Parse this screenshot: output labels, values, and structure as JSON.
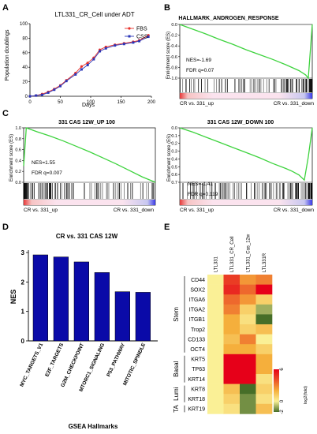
{
  "panel_labels": [
    "A",
    "B",
    "C",
    "D",
    "E"
  ],
  "chart_data": [
    {
      "id": "A",
      "type": "line",
      "title": "LTL331_CR_Cell under ADT",
      "xlabel": "Days",
      "ylabel": "Population doublings",
      "xlim": [
        0,
        200
      ],
      "ylim": [
        0,
        100
      ],
      "xticks": [
        "0",
        "50",
        "100",
        "150",
        "200"
      ],
      "yticks": [
        "0",
        "20",
        "40",
        "60",
        "80",
        "100"
      ],
      "legend_position": "top-right",
      "series": [
        {
          "name": "FBS",
          "color": "#e8302a",
          "x": [
            0,
            10,
            20,
            30,
            40,
            50,
            60,
            75,
            85,
            95,
            105,
            115,
            125,
            140,
            155,
            170,
            180,
            195
          ],
          "y": [
            0,
            1,
            3,
            6,
            10,
            15,
            22,
            32,
            41,
            46,
            53,
            64,
            68,
            71,
            73,
            75,
            77,
            84
          ]
        },
        {
          "name": "CSS",
          "color": "#2a36b8",
          "x": [
            0,
            10,
            20,
            30,
            40,
            50,
            60,
            75,
            85,
            95,
            105,
            115,
            125,
            140,
            155,
            170,
            180,
            195
          ],
          "y": [
            0,
            1,
            2,
            5,
            9,
            14,
            21,
            30,
            37,
            43,
            51,
            62,
            66,
            70,
            72,
            74,
            76,
            82
          ]
        }
      ]
    },
    {
      "id": "B",
      "type": "line",
      "title": "HALLMARK_ANDROGEN_RESPONSE",
      "ylabel": "Enrichment score (ES)",
      "ylim": [
        -1.0,
        0.0
      ],
      "yticks": [
        "0.0",
        "-0.2",
        "-0.4",
        "-0.6",
        "-0.8",
        "-1.0"
      ],
      "nes": "NES=-1.69",
      "fdr": "FDR q=0.07",
      "left_label": "CR vs. 331_up",
      "right_label": "CR vs. 331_down",
      "x": [
        0,
        0.1,
        0.2,
        0.3,
        0.4,
        0.5,
        0.6,
        0.7,
        0.8,
        0.9,
        0.95,
        0.97,
        0.985,
        1.0
      ],
      "y": [
        0,
        -0.09,
        -0.18,
        -0.28,
        -0.37,
        -0.47,
        -0.56,
        -0.65,
        -0.75,
        -0.86,
        -0.94,
        -1.0,
        -0.5,
        0
      ]
    },
    {
      "id": "C1",
      "type": "line",
      "title": "331 CAS 12W_UP 100",
      "ylabel": "Enrichment score (ES)",
      "ylim": [
        0.0,
        1.0
      ],
      "yticks": [
        "1.0",
        "0.8",
        "0.6",
        "0.4",
        "0.2",
        "0.0"
      ],
      "nes": "NES=1.55",
      "fdr": "FDR q=0.007",
      "left_label": "CR vs. 331_up",
      "right_label": "CR vs. 331_down",
      "x": [
        0,
        0.02,
        0.1,
        0.2,
        0.3,
        0.4,
        0.5,
        0.6,
        0.7,
        0.8,
        0.9,
        1.0
      ],
      "y": [
        0.3,
        1.0,
        0.93,
        0.85,
        0.76,
        0.66,
        0.56,
        0.45,
        0.34,
        0.22,
        0.1,
        0.0
      ]
    },
    {
      "id": "C2",
      "type": "line",
      "title": "331 CAS 12W_DOWN 100",
      "ylabel": "Enrichment score (ES)",
      "ylim": [
        -0.75,
        0.0
      ],
      "yticks": [
        "0.0",
        "0.1",
        "0.2",
        "0.3",
        "0.4",
        "0.5",
        "0.6",
        "0.7"
      ],
      "nes": "NES=-1.41",
      "fdr": "FDR q=0.119",
      "left_label": "CR vs. 331_up",
      "right_label": "CR vs. 331_down",
      "x": [
        0,
        0.1,
        0.2,
        0.3,
        0.4,
        0.5,
        0.6,
        0.7,
        0.8,
        0.85,
        0.9,
        0.94,
        0.97,
        1.0
      ],
      "y": [
        0,
        -0.06,
        -0.13,
        -0.2,
        -0.27,
        -0.34,
        -0.41,
        -0.49,
        -0.56,
        -0.6,
        -0.65,
        -0.72,
        -0.4,
        0
      ]
    },
    {
      "id": "D",
      "type": "bar",
      "title": "CR vs. 331 CAS 12W",
      "xlabel": "GSEA Hallmarks",
      "ylabel": "NES",
      "ylim": [
        0,
        3
      ],
      "yticks": [
        "0",
        "1",
        "2",
        "3"
      ],
      "bar_color": "#0a0aa8",
      "categories": [
        "MYC_TARGETS_V1",
        "E2F_TARGETS",
        "G2M_CHECKPOINT",
        "MTORC1_SIGNALING",
        "P53_PATHWAY",
        "MITOTIC_SPINDLE"
      ],
      "values": [
        2.92,
        2.85,
        2.68,
        2.32,
        1.67,
        1.65
      ]
    },
    {
      "id": "E",
      "type": "heatmap",
      "columns": [
        "LTL331",
        "LTL331_CR_Cell",
        "LTL331_Cas_12w",
        "LTL331R"
      ],
      "rows": [
        "CD44",
        "SOX2",
        "ITGA6",
        "ITGA2",
        "ITGB1",
        "Trop2",
        "CD133",
        "OCT4",
        "KRT5",
        "TP63",
        "KRT14",
        "KRT8",
        "KRT18",
        "KRT19"
      ],
      "groups": [
        {
          "label": "Stem",
          "start": 0,
          "end": 7
        },
        {
          "label": "Basal",
          "start": 8,
          "end": 10
        },
        {
          "label": "Lumi",
          "start": 11,
          "end": 12
        },
        {
          "label": "TA",
          "start": 13,
          "end": 13
        }
      ],
      "values": [
        [
          0.0,
          4.5,
          2.5,
          3.0
        ],
        [
          0.0,
          5.0,
          3.5,
          6.0
        ],
        [
          0.0,
          3.5,
          2.5,
          1.0
        ],
        [
          0.0,
          3.0,
          1.0,
          -1.0
        ],
        [
          0.0,
          2.0,
          0.5,
          -2.0
        ],
        [
          0.0,
          2.0,
          1.0,
          1.5
        ],
        [
          0.0,
          1.5,
          3.0,
          0.0
        ],
        [
          0.0,
          2.0,
          2.0,
          1.0
        ],
        [
          0.0,
          6.0,
          6.0,
          2.0
        ],
        [
          0.0,
          6.0,
          6.0,
          2.0
        ],
        [
          0.0,
          6.0,
          6.0,
          0.5
        ],
        [
          0.0,
          1.5,
          -2.0,
          1.0
        ],
        [
          0.0,
          1.0,
          -1.5,
          0.5
        ],
        [
          0.0,
          0.5,
          -1.5,
          1.5
        ]
      ],
      "legend_title": "log2(fold)",
      "legend_ticks": [
        "-2",
        "0",
        "6"
      ],
      "color_min": -2,
      "color_max": 6
    }
  ]
}
